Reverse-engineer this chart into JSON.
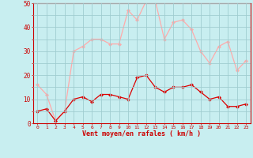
{
  "hours": [
    0,
    1,
    2,
    3,
    4,
    5,
    6,
    7,
    8,
    9,
    10,
    11,
    12,
    13,
    14,
    15,
    16,
    17,
    18,
    19,
    20,
    21,
    22,
    23
  ],
  "wind_avg": [
    5,
    6,
    1,
    5,
    10,
    11,
    9,
    12,
    12,
    11,
    10,
    19,
    20,
    15,
    13,
    15,
    15,
    16,
    13,
    10,
    11,
    7,
    7,
    8
  ],
  "wind_gust": [
    16,
    12,
    1,
    5,
    30,
    32,
    35,
    35,
    33,
    33,
    47,
    43,
    51,
    51,
    35,
    42,
    43,
    39,
    30,
    25,
    32,
    34,
    22,
    26
  ],
  "avg_color": "#dd0000",
  "gust_color": "#ffaaaa",
  "bg_color": "#c8eef0",
  "grid_color": "#a0cdd0",
  "xlabel": "Vent moyen/en rafales ( km/h )",
  "xlabel_color": "#cc0000",
  "tick_color": "#cc0000",
  "spine_color": "#cc0000",
  "ylim": [
    0,
    50
  ],
  "ytick_vals": [
    0,
    5,
    10,
    15,
    20,
    25,
    30,
    35,
    40,
    45,
    50
  ],
  "ytick_labels": [
    "0",
    "",
    "10",
    "",
    "20",
    "",
    "30",
    "",
    "40",
    "",
    "50"
  ],
  "marker": "D",
  "marker_size": 2.0,
  "line_width": 0.9
}
